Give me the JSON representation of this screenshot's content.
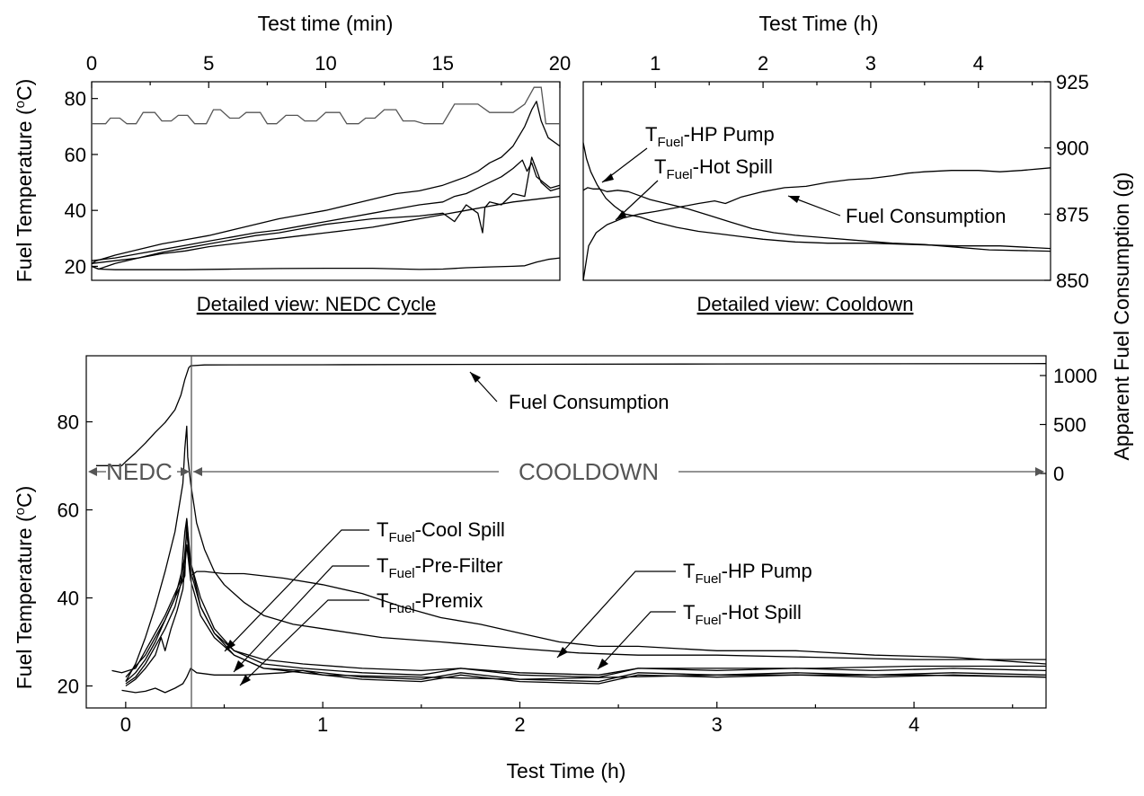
{
  "chart_data": [
    {
      "id": "nedc",
      "type": "line",
      "caption": "Detailed view: NEDC Cycle",
      "xlabel": "Test time (min)",
      "ylabel": "Fuel Temperature (°C)",
      "xlim": [
        0,
        20
      ],
      "ylim": [
        15,
        86
      ],
      "xticks": [
        0,
        5,
        10,
        15,
        20
      ],
      "yticks": [
        20,
        40,
        60,
        80
      ],
      "grid": false,
      "series": [
        {
          "id": "speed_trace",
          "x": [
            0,
            0.6,
            0.8,
            1.2,
            1.5,
            1.9,
            2.2,
            2.7,
            3.0,
            3.4,
            3.7,
            4.1,
            4.4,
            4.9,
            5.2,
            5.5,
            5.9,
            6.3,
            6.6,
            7.2,
            7.5,
            7.9,
            8.3,
            8.8,
            9.1,
            9.6,
            10.0,
            10.6,
            10.9,
            11.4,
            11.7,
            12.1,
            12.5,
            13.0,
            13.3,
            13.8,
            14.2,
            15.0,
            15.5,
            16.5,
            17.0,
            18.0,
            18.5,
            18.9,
            19.2,
            19.4,
            20.0
          ],
          "y": [
            71,
            71,
            73,
            73,
            71,
            71,
            75,
            75,
            72,
            72,
            74,
            74,
            71,
            71,
            76,
            76,
            73,
            73,
            75,
            75,
            71,
            71,
            74,
            74,
            72,
            72,
            75,
            75,
            71,
            71,
            73,
            73,
            76,
            76,
            72,
            72,
            71,
            71,
            78,
            78,
            75,
            75,
            78,
            84,
            84,
            71,
            71
          ]
        },
        {
          "id": "hp_pump",
          "x": [
            0,
            0.2,
            1,
            2,
            3,
            4,
            5,
            6,
            7,
            8,
            9,
            10,
            11,
            12,
            13,
            14,
            15,
            16,
            16.5,
            17,
            17.5,
            18,
            18.5,
            18.8,
            19.0,
            19.2,
            19.5,
            20
          ],
          "y": [
            21,
            22,
            24,
            26,
            28,
            29.5,
            31,
            33,
            35,
            37,
            38.5,
            40,
            42,
            44,
            46,
            47,
            49,
            52,
            54,
            57,
            59,
            63,
            70,
            76,
            79,
            72,
            66,
            63
          ]
        },
        {
          "id": "hot_spill",
          "x": [
            0,
            1,
            2,
            3,
            4,
            5,
            6,
            7,
            8,
            9,
            10,
            11,
            12,
            13,
            14,
            15,
            15.5,
            16,
            16.5,
            17,
            17.5,
            18,
            18.4,
            18.6,
            18.8,
            19.0,
            19.3,
            19.6,
            20
          ],
          "y": [
            22,
            23,
            24.5,
            26,
            27.5,
            29,
            30.5,
            32,
            33,
            34.5,
            36,
            37.5,
            39,
            40.5,
            42,
            43,
            45,
            46,
            48,
            50,
            52,
            55,
            58,
            54,
            57,
            52,
            50,
            48,
            49
          ]
        },
        {
          "id": "premix",
          "x": [
            0,
            0.3,
            1,
            2,
            3,
            4,
            5,
            6,
            7,
            8,
            9,
            10,
            11,
            12,
            13,
            14,
            15,
            15.5,
            16,
            16.5,
            16.7,
            16.8,
            17,
            17.5,
            18,
            18.5,
            18.8,
            19.2,
            19.6,
            20
          ],
          "y": [
            20,
            19,
            21,
            23,
            25,
            26.5,
            28,
            29.5,
            31,
            32,
            33.5,
            35,
            36,
            37,
            37.5,
            38,
            39,
            36,
            42,
            39,
            32,
            41,
            43,
            42,
            46,
            45,
            59,
            50,
            47,
            48
          ]
        },
        {
          "id": "cool_spill",
          "x": [
            0,
            1,
            2,
            3,
            4,
            5,
            6,
            7,
            8,
            9,
            10,
            11,
            12,
            13,
            14,
            15,
            16,
            17,
            18,
            19,
            20
          ],
          "y": [
            21,
            22,
            23,
            24.5,
            25.5,
            27,
            28,
            29,
            30,
            31,
            32,
            33,
            34,
            35.5,
            37,
            38.5,
            40,
            41.5,
            43,
            44,
            45
          ]
        },
        {
          "id": "ambient",
          "x": [
            0,
            0.3,
            1,
            2,
            4,
            6,
            8,
            10,
            12,
            14,
            15,
            16,
            17,
            18,
            18.5,
            19,
            19.5,
            20
          ],
          "y": [
            20,
            19,
            18.8,
            18.8,
            18.8,
            19,
            19.2,
            19.3,
            19.3,
            18.9,
            19,
            19.5,
            19.8,
            20,
            20.2,
            21.5,
            22.5,
            23
          ]
        }
      ]
    },
    {
      "id": "cooldown",
      "type": "line",
      "caption": "Detailed view: Cooldown",
      "xlabel": "Test Time (h)",
      "ylabel": "Apparent Fuel Consumption (g)",
      "xlim": [
        0.33,
        4.67
      ],
      "ylim": [
        850,
        925
      ],
      "xticks": [
        1,
        2,
        3,
        4
      ],
      "yticks": [
        850,
        875,
        900,
        925
      ],
      "grid": false,
      "annotations": [
        {
          "id": "hp_pump",
          "label_main": "T",
          "label_sub": "Fuel",
          "label_rest": "-HP Pump"
        },
        {
          "id": "hot_spill",
          "label_main": "T",
          "label_sub": "Fuel",
          "label_rest": "-Hot Spill"
        },
        {
          "id": "fuel_consumption",
          "label_main": "Fuel Consumption"
        }
      ],
      "series": [
        {
          "id": "fuel_consumption",
          "x": [
            0.33,
            0.38,
            0.45,
            0.55,
            0.7,
            0.85,
            1.0,
            1.2,
            1.4,
            1.55,
            1.65,
            1.8,
            2.0,
            2.2,
            2.4,
            2.6,
            2.8,
            3.0,
            3.2,
            3.35,
            3.5,
            3.75,
            4.0,
            4.2,
            4.4,
            4.67
          ],
          "y": [
            850,
            863,
            868,
            871,
            873.5,
            875,
            876,
            877.5,
            879,
            880,
            879,
            881.5,
            883.5,
            885,
            885.5,
            887,
            888,
            888.5,
            889.5,
            890.5,
            891,
            891.5,
            891.5,
            891,
            891.5,
            892.5
          ]
        },
        {
          "id": "hp_pump",
          "x": [
            0.33,
            0.36,
            0.4,
            0.46,
            0.54,
            0.62,
            0.72,
            0.85,
            1.0,
            1.2,
            1.4,
            1.6,
            1.8,
            2.0,
            2.3,
            2.6,
            3.0,
            3.4,
            3.8,
            4.2,
            4.67
          ],
          "y": [
            902,
            896,
            891,
            886,
            881,
            878,
            875,
            874,
            872,
            870,
            868.5,
            867.5,
            866.5,
            865.5,
            864.5,
            864,
            864,
            863.5,
            863,
            863,
            862
          ]
        },
        {
          "id": "hot_spill",
          "x": [
            0.33,
            0.37,
            0.42,
            0.48,
            0.55,
            0.65,
            0.75,
            0.85,
            0.95,
            1.1,
            1.3,
            1.5,
            1.7,
            1.9,
            2.1,
            2.3,
            2.6,
            2.9,
            3.2,
            3.5,
            3.8,
            4.1,
            4.67
          ],
          "y": [
            884,
            885,
            884.5,
            884.5,
            883.5,
            884,
            883.5,
            882,
            880.5,
            879,
            877,
            874.5,
            872,
            869.5,
            868,
            867,
            866,
            865,
            864,
            863.5,
            862.5,
            861.5,
            861
          ]
        }
      ]
    },
    {
      "id": "full",
      "type": "line",
      "xlabel": "Test Time (h)",
      "ylabel": "Fuel Temperature (°C)",
      "y2label": "Apparent Fuel Consumption (g)",
      "xlim": [
        -0.2,
        4.67
      ],
      "ylim": [
        15,
        95
      ],
      "xticks": [
        0,
        1,
        2,
        3,
        4
      ],
      "yticks": [
        20,
        40,
        60,
        80
      ],
      "y2ticks": [
        0,
        500,
        1000
      ],
      "grid": false,
      "phases": [
        {
          "id": "nedc",
          "label": "NEDC",
          "from": -0.2,
          "to": 0.33
        },
        {
          "id": "cooldown",
          "label": "COOLDOWN",
          "from": 0.33,
          "to": 4.67
        }
      ],
      "annotations": [
        {
          "id": "fuel_consumption",
          "label_main": "Fuel Consumption"
        },
        {
          "id": "cool_spill",
          "label_main": "T",
          "label_sub": "Fuel",
          "label_rest": "-Cool Spill"
        },
        {
          "id": "pre_filter",
          "label_main": "T",
          "label_sub": "Fuel",
          "label_rest": "-Pre-Filter"
        },
        {
          "id": "premix",
          "label_main": "T",
          "label_sub": "Fuel",
          "label_rest": "-Premix"
        },
        {
          "id": "hp_pump",
          "label_main": "T",
          "label_sub": "Fuel",
          "label_rest": "-HP Pump"
        },
        {
          "id": "hot_spill",
          "label_main": "T",
          "label_sub": "Fuel",
          "label_rest": "-Hot Spill"
        }
      ],
      "series": [
        {
          "id": "fuel_consumption",
          "axis": "y2",
          "x": [
            -0.15,
            -0.02,
            0,
            0.05,
            0.1,
            0.15,
            0.2,
            0.25,
            0.28,
            0.3,
            0.32,
            0.33,
            0.4,
            1.0,
            2.0,
            3.0,
            4.0,
            4.67
          ],
          "y": [
            80,
            80,
            120,
            210,
            310,
            420,
            520,
            650,
            800,
            960,
            1080,
            1100,
            1108,
            1110,
            1115,
            1118,
            1120,
            1122
          ]
        },
        {
          "id": "hp_pump",
          "x": [
            0,
            0.05,
            0.1,
            0.15,
            0.2,
            0.25,
            0.29,
            0.3,
            0.31,
            0.315,
            0.32,
            0.33,
            0.36,
            0.4,
            0.45,
            0.5,
            0.6,
            0.7,
            0.85,
            1.0,
            1.3,
            1.6,
            2.0,
            2.3,
            2.6,
            3.0,
            3.5,
            4.0,
            4.67
          ],
          "y": [
            21,
            25,
            31,
            38,
            46,
            55,
            66,
            74,
            79,
            72,
            70,
            66,
            57,
            51,
            46,
            43,
            39,
            36,
            34,
            33,
            31,
            30,
            28.5,
            27.5,
            27,
            27,
            26.5,
            26,
            26
          ]
        },
        {
          "id": "hot_spill",
          "x": [
            0,
            0.1,
            0.2,
            0.3,
            0.31,
            0.33,
            0.36,
            0.4,
            0.5,
            0.6,
            0.7,
            0.8,
            1.0,
            1.2,
            1.4,
            1.6,
            1.8,
            2.0,
            2.2,
            2.4,
            2.6,
            3.0,
            3.4,
            3.8,
            4.2,
            4.67
          ],
          "y": [
            22,
            27,
            35,
            45,
            58,
            45,
            46,
            46,
            45.5,
            45.5,
            45,
            44.5,
            43,
            41,
            38,
            35.5,
            34,
            32,
            30,
            29,
            29,
            28,
            28,
            27,
            26.5,
            25
          ]
        },
        {
          "id": "cool_spill",
          "x": [
            0,
            0.05,
            0.1,
            0.15,
            0.2,
            0.25,
            0.29,
            0.31,
            0.33,
            0.38,
            0.45,
            0.55,
            0.7,
            0.9,
            1.2,
            1.5,
            1.7,
            2.0,
            2.4,
            2.6,
            3.0,
            3.4,
            3.8,
            4.2,
            4.67
          ],
          "y": [
            21,
            23,
            26,
            30,
            35,
            40,
            47,
            52,
            48,
            40,
            33,
            28,
            25,
            24,
            23,
            22.5,
            24,
            22.5,
            22,
            24,
            23.5,
            24,
            23.5,
            24,
            23.5
          ]
        },
        {
          "id": "pre_filter",
          "x": [
            0,
            0.05,
            0.1,
            0.15,
            0.2,
            0.25,
            0.29,
            0.31,
            0.33,
            0.38,
            0.45,
            0.55,
            0.7,
            0.9,
            1.2,
            1.5,
            1.7,
            2.0,
            2.4,
            2.6,
            3.0,
            3.4,
            3.8,
            4.2,
            4.67
          ],
          "y": [
            20.5,
            22,
            25,
            29,
            33,
            38,
            45,
            55,
            46,
            38,
            32,
            27,
            24,
            23.5,
            22,
            21.5,
            23,
            21.5,
            21,
            23,
            22.5,
            23,
            22.5,
            23,
            22.5
          ]
        },
        {
          "id": "premix",
          "x": [
            0,
            0.05,
            0.1,
            0.15,
            0.18,
            0.2,
            0.23,
            0.26,
            0.29,
            0.31,
            0.33,
            0.38,
            0.45,
            0.55,
            0.7,
            0.9,
            1.2,
            1.5,
            1.7,
            2.0,
            2.4,
            2.6,
            3.0,
            3.4,
            3.8,
            4.2,
            4.67
          ],
          "y": [
            20,
            21.5,
            24,
            27,
            31,
            28,
            33,
            37,
            42,
            52,
            44,
            36,
            31,
            27,
            24,
            23,
            21.5,
            21,
            22.5,
            21,
            20.5,
            22.5,
            22,
            22.5,
            22,
            22.5,
            22
          ]
        },
        {
          "id": "ambient",
          "x": [
            -0.02,
            0.05,
            0.1,
            0.15,
            0.2,
            0.25,
            0.29,
            0.31,
            0.33,
            0.36,
            0.45,
            0.6,
            0.8,
            0.9,
            1.0,
            1.5,
            2.0,
            2.5,
            3.0,
            3.5,
            4.0,
            4.67
          ],
          "y": [
            19,
            18.5,
            18.8,
            19.5,
            18.5,
            19.5,
            20.5,
            22,
            24,
            23,
            22.5,
            22.5,
            23,
            23.5,
            22.5,
            22,
            21.5,
            22,
            22.5,
            22.5,
            22.5,
            22
          ]
        },
        {
          "id": "extra_trace",
          "x": [
            -0.07,
            -0.02,
            0.05,
            0.1,
            0.2,
            0.28,
            0.3,
            0.31,
            0.33,
            0.38,
            0.45,
            0.55,
            0.7,
            0.9,
            1.2,
            1.5,
            1.7,
            2.0,
            2.4,
            2.6,
            3.0,
            3.5,
            4.0,
            4.67
          ],
          "y": [
            23.5,
            23,
            24,
            28,
            36,
            44,
            55,
            58,
            48,
            38,
            32,
            28,
            26,
            25,
            24,
            23.5,
            24,
            23,
            22.5,
            24,
            24,
            24,
            24.5,
            24.5
          ]
        }
      ]
    }
  ]
}
